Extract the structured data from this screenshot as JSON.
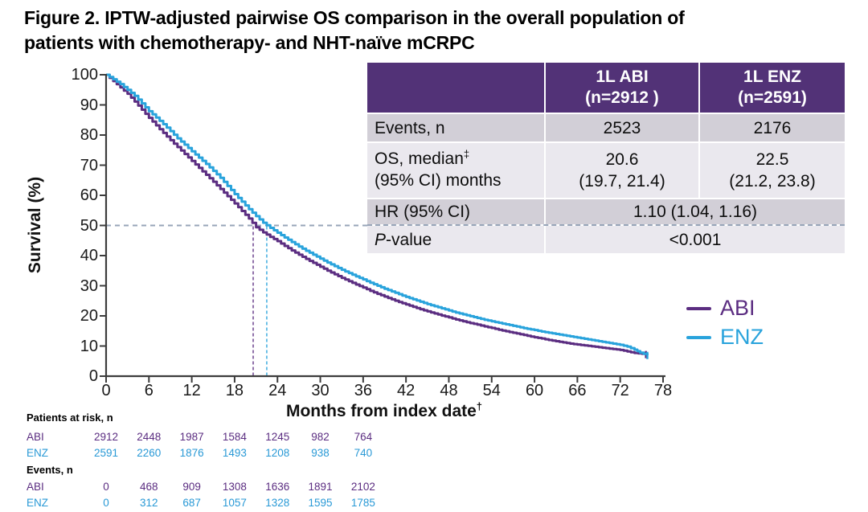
{
  "figure_title_line1": "Figure 2. IPTW-adjusted pairwise OS comparison in the overall population of",
  "figure_title_line2": "patients with chemotherapy- and NHT-naïve mCRPC",
  "colors": {
    "abi": "#5B2D81",
    "enz": "#29A3DC",
    "table_header_bg": "#523277",
    "row_dark": "#D2CFD7",
    "row_light": "#EAE8EE",
    "reference_dash": "#97A5B8",
    "axis": "#3C3C3C"
  },
  "results_table": {
    "header": {
      "abi_line1": "1L ABI",
      "abi_line2": "(n=2912 )",
      "enz_line1": "1L ENZ",
      "enz_line2": "(n=2591)"
    },
    "rows": {
      "events": {
        "label": "Events, n",
        "abi": "2523",
        "enz": "2176"
      },
      "os": {
        "label_main": "OS, median",
        "label_sup": "‡",
        "label_line2": "(95% CI) months",
        "abi_line1": "20.6",
        "abi_line2": "(19.7, 21.4)",
        "enz_line1": "22.5",
        "enz_line2": "(21.2, 23.8)"
      },
      "hr": {
        "label": "HR (95% CI)",
        "value": "1.10 (1.04, 1.16)"
      },
      "pvalue": {
        "label_italic": "P",
        "label_rest": "-value",
        "value": "<0.001"
      }
    }
  },
  "legend": [
    {
      "label": "ABI",
      "color": "#5B2D81"
    },
    {
      "label": "ENZ",
      "color": "#29A3DC"
    }
  ],
  "risk_table": {
    "months": [
      0,
      6,
      12,
      18,
      24,
      30,
      36
    ],
    "sections": [
      {
        "header": "Patients at risk, n",
        "rows": [
          {
            "label": "ABI",
            "color": "#5B2D81",
            "values": [
              "2912",
              "2448",
              "1987",
              "1584",
              "1245",
              "982",
              "764"
            ]
          },
          {
            "label": "ENZ",
            "color": "#2999D6",
            "values": [
              "2591",
              "2260",
              "1876",
              "1493",
              "1208",
              "938",
              "740"
            ]
          }
        ]
      },
      {
        "header": "Events, n",
        "rows": [
          {
            "label": "ABI",
            "color": "#5B2D81",
            "values": [
              "0",
              "468",
              "909",
              "1308",
              "1636",
              "1891",
              "2102"
            ]
          },
          {
            "label": "ENZ",
            "color": "#2999D6",
            "values": [
              "0",
              "312",
              "687",
              "1057",
              "1328",
              "1595",
              "1785"
            ]
          }
        ]
      }
    ]
  },
  "chart_data": {
    "type": "line",
    "title": "IPTW-adjusted pairwise OS comparison (Kaplan-Meier)",
    "xlabel": "Months from index date",
    "xlabel_sup": "†",
    "ylabel": "Survival (%)",
    "xlim": [
      0,
      78
    ],
    "ylim": [
      0,
      100
    ],
    "xticks": [
      0,
      6,
      12,
      18,
      24,
      30,
      36,
      42,
      48,
      54,
      60,
      66,
      72,
      78
    ],
    "yticks": [
      0,
      10,
      20,
      30,
      40,
      50,
      60,
      70,
      80,
      90,
      100
    ],
    "grid": false,
    "legend_position": "right",
    "reference_line_y": 50,
    "medians": {
      "ABI": 20.6,
      "ENZ": 22.5
    },
    "series": [
      {
        "name": "ABI",
        "color": "#5B2D81",
        "points": [
          [
            0,
            100
          ],
          [
            1,
            97.9
          ],
          [
            2,
            95.8
          ],
          [
            3,
            93.7
          ],
          [
            4,
            91.1
          ],
          [
            5,
            88.4
          ],
          [
            6,
            85.7
          ],
          [
            7,
            83.2
          ],
          [
            8,
            80.7
          ],
          [
            9,
            78.3
          ],
          [
            10,
            76.0
          ],
          [
            11,
            73.7
          ],
          [
            12,
            71.4
          ],
          [
            13,
            69.1
          ],
          [
            14,
            66.8
          ],
          [
            15,
            64.5
          ],
          [
            16,
            62.1
          ],
          [
            17,
            59.7
          ],
          [
            18,
            57.3
          ],
          [
            19,
            54.8
          ],
          [
            20,
            52.3
          ],
          [
            21,
            49.4
          ],
          [
            22,
            47.7
          ],
          [
            23,
            46.2
          ],
          [
            24,
            44.8
          ],
          [
            25,
            43.2
          ],
          [
            26,
            41.7
          ],
          [
            27,
            40.3
          ],
          [
            28,
            38.9
          ],
          [
            29,
            37.6
          ],
          [
            30,
            36.3
          ],
          [
            31,
            35.0
          ],
          [
            32,
            33.8
          ],
          [
            33,
            32.6
          ],
          [
            34,
            31.5
          ],
          [
            35,
            30.4
          ],
          [
            36,
            29.4
          ],
          [
            37,
            28.3
          ],
          [
            38,
            27.3
          ],
          [
            39,
            26.4
          ],
          [
            40,
            25.5
          ],
          [
            41,
            24.6
          ],
          [
            42,
            23.8
          ],
          [
            43,
            23.0
          ],
          [
            44,
            22.2
          ],
          [
            45,
            21.5
          ],
          [
            46,
            20.8
          ],
          [
            47,
            20.1
          ],
          [
            48,
            19.5
          ],
          [
            49,
            18.8
          ],
          [
            50,
            18.2
          ],
          [
            51,
            17.6
          ],
          [
            52,
            17.1
          ],
          [
            53,
            16.5
          ],
          [
            54,
            16.0
          ],
          [
            55,
            15.4
          ],
          [
            56,
            14.9
          ],
          [
            57,
            14.4
          ],
          [
            58,
            13.9
          ],
          [
            59,
            13.4
          ],
          [
            60,
            12.9
          ],
          [
            61,
            12.5
          ],
          [
            62,
            12.0
          ],
          [
            63,
            11.6
          ],
          [
            64,
            11.2
          ],
          [
            65,
            10.8
          ],
          [
            66,
            10.5
          ],
          [
            67,
            10.2
          ],
          [
            68,
            9.9
          ],
          [
            69,
            9.6
          ],
          [
            70,
            9.3
          ],
          [
            71,
            9.0
          ],
          [
            72,
            8.7
          ],
          [
            73,
            8.2
          ],
          [
            74,
            7.7
          ],
          [
            75.6,
            7.3
          ]
        ]
      },
      {
        "name": "ENZ",
        "color": "#29A3DC",
        "points": [
          [
            0,
            100
          ],
          [
            1,
            98.5
          ],
          [
            2,
            96.9
          ],
          [
            3,
            95.0
          ],
          [
            4,
            93.0
          ],
          [
            5,
            90.5
          ],
          [
            6,
            87.9
          ],
          [
            7,
            85.8
          ],
          [
            8,
            83.6
          ],
          [
            9,
            81.3
          ],
          [
            10,
            78.9
          ],
          [
            11,
            76.8
          ],
          [
            12,
            74.6
          ],
          [
            13,
            72.5
          ],
          [
            14,
            70.4
          ],
          [
            15,
            68.1
          ],
          [
            16,
            65.8
          ],
          [
            17,
            63.1
          ],
          [
            18,
            60.4
          ],
          [
            19,
            57.9
          ],
          [
            20,
            55.4
          ],
          [
            21,
            53.1
          ],
          [
            22,
            50.9
          ],
          [
            23,
            49.2
          ],
          [
            24,
            47.6
          ],
          [
            25,
            46.0
          ],
          [
            26,
            44.5
          ],
          [
            27,
            43.0
          ],
          [
            28,
            41.6
          ],
          [
            29,
            40.3
          ],
          [
            30,
            39.0
          ],
          [
            31,
            37.7
          ],
          [
            32,
            36.5
          ],
          [
            33,
            35.3
          ],
          [
            34,
            34.2
          ],
          [
            35,
            33.1
          ],
          [
            36,
            32.1
          ],
          [
            37,
            31.0
          ],
          [
            38,
            30.0
          ],
          [
            39,
            29.0
          ],
          [
            40,
            28.1
          ],
          [
            41,
            27.2
          ],
          [
            42,
            26.3
          ],
          [
            43,
            25.5
          ],
          [
            44,
            24.7
          ],
          [
            45,
            23.9
          ],
          [
            46,
            23.2
          ],
          [
            47,
            22.5
          ],
          [
            48,
            21.8
          ],
          [
            49,
            21.1
          ],
          [
            50,
            20.5
          ],
          [
            51,
            19.9
          ],
          [
            52,
            19.3
          ],
          [
            53,
            18.7
          ],
          [
            54,
            18.2
          ],
          [
            55,
            17.7
          ],
          [
            56,
            17.2
          ],
          [
            57,
            16.7
          ],
          [
            58,
            16.2
          ],
          [
            59,
            15.7
          ],
          [
            60,
            15.3
          ],
          [
            61,
            14.8
          ],
          [
            62,
            14.4
          ],
          [
            63,
            14.0
          ],
          [
            64,
            13.6
          ],
          [
            65,
            13.2
          ],
          [
            66,
            12.8
          ],
          [
            67,
            12.4
          ],
          [
            68,
            12.0
          ],
          [
            69,
            11.6
          ],
          [
            70,
            11.2
          ],
          [
            71,
            10.8
          ],
          [
            72,
            10.4
          ],
          [
            73,
            9.8
          ],
          [
            74,
            8.8
          ],
          [
            74.8,
            7.8
          ],
          [
            75.8,
            7.0
          ]
        ]
      }
    ]
  }
}
